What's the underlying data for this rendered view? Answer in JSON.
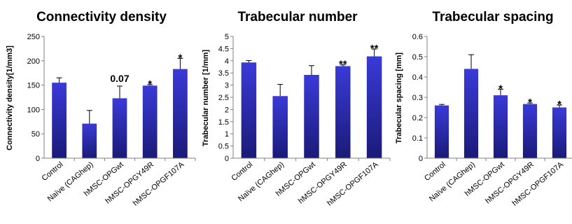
{
  "chart_data": [
    {
      "type": "bar",
      "title": "Connectivity density",
      "ylabel": "Connectivity density[1/mm3]",
      "xlabel": "",
      "categories": [
        "Control",
        "Naïve (CAGhep)",
        "hMSC-OPGwt",
        "hMSC-OPGY49R",
        "hMSC-OPGF107A"
      ],
      "values": [
        155,
        71,
        123,
        149,
        183
      ],
      "errors": [
        10,
        27,
        25,
        2,
        22
      ],
      "annotations": [
        "",
        "",
        "0.07",
        "*",
        "*"
      ],
      "yticks": [
        "0",
        "50",
        "100",
        "150",
        "200",
        "250"
      ],
      "ylim": [
        0,
        250
      ]
    },
    {
      "type": "bar",
      "title": "Trabecular number",
      "ylabel": "Trabecular number [1/mm]",
      "xlabel": "",
      "categories": [
        "Control",
        "Naïve (CAGhep)",
        "hMSC-OPGwt",
        "hMSC-OPGY49R",
        "hMSC-OPGF107A"
      ],
      "values": [
        3.93,
        2.55,
        3.42,
        3.78,
        4.18
      ],
      "errors": [
        0.08,
        0.48,
        0.38,
        0.05,
        0.3
      ],
      "annotations": [
        "",
        "",
        "",
        "**",
        "**"
      ],
      "yticks": [
        "0",
        "0.5",
        "1",
        "1.5",
        "2",
        "2.5",
        "3",
        "3.5",
        "4",
        "4.5",
        "5"
      ],
      "ylim": [
        0,
        5
      ]
    },
    {
      "type": "bar",
      "title": "Trabecular spacing",
      "ylabel": "Trabecular spacing [mm]",
      "xlabel": "",
      "categories": [
        "Control",
        "Naïve (CAGhep)",
        "hMSC-OPGwt",
        "hMSC-OPGY49R",
        "hMSC-OPGF107A"
      ],
      "values": [
        0.26,
        0.44,
        0.31,
        0.267,
        0.25
      ],
      "errors": [
        0.005,
        0.07,
        0.03,
        0.005,
        0.012
      ],
      "annotations": [
        "",
        "",
        "*",
        "*",
        "*"
      ],
      "yticks": [
        "0",
        "0.1",
        "0.2",
        "0.3",
        "0.4",
        "0.5",
        "0.6"
      ],
      "ylim": [
        0,
        0.6
      ]
    }
  ],
  "colors": {
    "bar_top": "#3a3ad8",
    "bar_bottom": "#1a1a78",
    "axis": "#808080",
    "error": "#000000"
  }
}
